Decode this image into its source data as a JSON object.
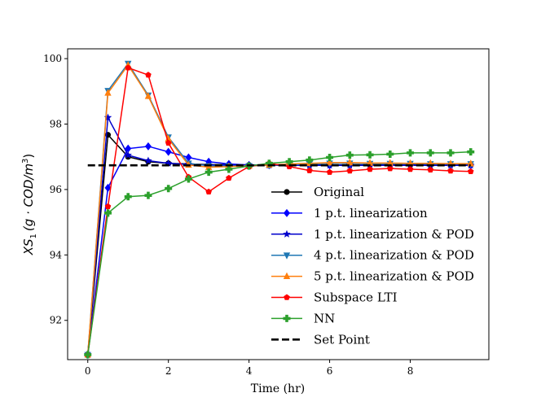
{
  "chart_data": {
    "type": "line",
    "title": "",
    "xlabel": "Time (hr)",
    "ylabel": "XS_1 (g · COD/m^3)",
    "ylabel_main": "XS",
    "ylabel_sub": "1",
    "ylabel_unit": "(g · COD/m",
    "ylabel_sup": "3",
    "ylabel_close": ")",
    "xlim": [
      -0.5,
      9.95
    ],
    "ylim": [
      90.8,
      100.3
    ],
    "xticks": [
      0,
      2,
      4,
      6,
      8
    ],
    "yticks": [
      92,
      94,
      96,
      98,
      100
    ],
    "legend_position": "lower-right",
    "x": [
      0,
      0.5,
      1,
      1.5,
      2,
      2.5,
      3,
      3.5,
      4,
      4.5,
      5,
      5.5,
      6,
      6.5,
      7,
      7.5,
      8,
      8.5,
      9,
      9.5
    ],
    "series": [
      {
        "name": "Original",
        "color": "#000000",
        "marker": "circle",
        "values": [
          90.95,
          97.67,
          97.0,
          96.85,
          96.8,
          96.78,
          96.76,
          96.76,
          96.75,
          96.75,
          96.75,
          96.75,
          96.75,
          96.75,
          96.75,
          96.75,
          96.75,
          96.75,
          96.75,
          96.75
        ]
      },
      {
        "name": "1 p.t. linearization",
        "color": "#0000ff",
        "marker": "diamond",
        "values": [
          90.95,
          96.05,
          97.25,
          97.32,
          97.15,
          96.98,
          96.85,
          96.78,
          96.75,
          96.74,
          96.74,
          96.74,
          96.74,
          96.74,
          96.74,
          96.74,
          96.74,
          96.74,
          96.74,
          96.74
        ]
      },
      {
        "name": "1 p.t. linearization & POD",
        "color": "#0000cc",
        "marker": "star",
        "values": [
          90.95,
          98.2,
          97.05,
          96.88,
          96.8,
          96.77,
          96.75,
          96.75,
          96.74,
          96.74,
          96.74,
          96.74,
          96.74,
          96.74,
          96.74,
          96.74,
          96.74,
          96.74,
          96.74,
          96.74
        ]
      },
      {
        "name": "4 p.t. linearization & POD",
        "color": "#1f77b4",
        "marker": "triangle-down",
        "values": [
          90.95,
          99.02,
          99.85,
          98.88,
          97.6,
          96.8,
          96.72,
          96.72,
          96.72,
          96.74,
          96.76,
          96.78,
          96.8,
          96.8,
          96.79,
          96.79,
          96.79,
          96.78,
          96.78,
          96.78
        ]
      },
      {
        "name": "5 p.t. linearization & POD",
        "color": "#ff7f0e",
        "marker": "triangle-up",
        "values": [
          90.95,
          98.95,
          99.8,
          98.85,
          97.55,
          96.75,
          96.68,
          96.7,
          96.72,
          96.75,
          96.78,
          96.8,
          96.82,
          96.82,
          96.81,
          96.81,
          96.8,
          96.8,
          96.79,
          96.79
        ]
      },
      {
        "name": "Subspace LTI",
        "color": "#ff0000",
        "marker": "pentagon",
        "values": [
          90.95,
          95.48,
          99.72,
          99.5,
          97.42,
          96.38,
          95.93,
          96.35,
          96.7,
          96.8,
          96.7,
          96.58,
          96.53,
          96.57,
          96.62,
          96.64,
          96.62,
          96.6,
          96.57,
          96.55
        ]
      },
      {
        "name": "NN",
        "color": "#2ca02c",
        "marker": "plus",
        "values": [
          90.95,
          95.28,
          95.78,
          95.82,
          96.03,
          96.32,
          96.53,
          96.62,
          96.72,
          96.8,
          96.85,
          96.9,
          96.98,
          97.05,
          97.06,
          97.08,
          97.12,
          97.12,
          97.12,
          97.15
        ]
      },
      {
        "name": "Set Point",
        "color": "#000000",
        "marker": "none",
        "dashed": true,
        "x_range": [
          0,
          9.5
        ],
        "value": 96.74
      }
    ]
  }
}
